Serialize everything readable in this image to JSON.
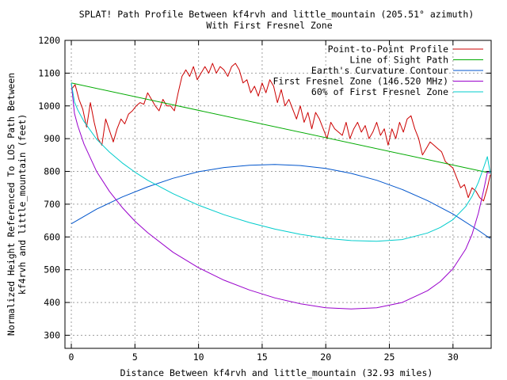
{
  "chart_data": {
    "type": "line",
    "title": "SPLAT! Path Profile Between kf4rvh and little_mountain (205.51° azimuth)",
    "subtitle": "With First Fresnel Zone",
    "xlabel": "Distance Between kf4rvh and little_mountain (32.93 miles)",
    "ylabel_line1": "Normalized Height Referenced To LOS Path Between",
    "ylabel_line2": "kf4rvh and little_mountain (feet)",
    "xlim": [
      -0.5,
      33
    ],
    "ylim": [
      260,
      1200
    ],
    "x_ticks": [
      0,
      5,
      10,
      15,
      20,
      25,
      30
    ],
    "y_ticks": [
      300,
      400,
      500,
      600,
      700,
      800,
      900,
      1000,
      1100,
      1200
    ],
    "grid": true,
    "legend_position": "top-right",
    "series": [
      {
        "name": "Point-to-Point Profile",
        "color": "#cc0000",
        "x": [
          0,
          0.3,
          0.6,
          0.9,
          1.2,
          1.5,
          1.8,
          2.1,
          2.4,
          2.7,
          3.0,
          3.3,
          3.6,
          3.9,
          4.2,
          4.5,
          4.8,
          5.1,
          5.4,
          5.7,
          6.0,
          6.3,
          6.6,
          6.9,
          7.2,
          7.5,
          7.8,
          8.1,
          8.4,
          8.7,
          9.0,
          9.3,
          9.6,
          9.9,
          10.2,
          10.5,
          10.8,
          11.1,
          11.4,
          11.7,
          12.0,
          12.3,
          12.6,
          12.9,
          13.2,
          13.5,
          13.8,
          14.1,
          14.4,
          14.7,
          15.0,
          15.3,
          15.6,
          15.9,
          16.2,
          16.5,
          16.8,
          17.1,
          17.4,
          17.7,
          18.0,
          18.3,
          18.6,
          18.9,
          19.2,
          19.5,
          19.8,
          20.1,
          20.4,
          20.7,
          21.0,
          21.3,
          21.6,
          21.9,
          22.2,
          22.5,
          22.8,
          23.1,
          23.4,
          23.7,
          24.0,
          24.3,
          24.6,
          24.9,
          25.2,
          25.5,
          25.8,
          26.1,
          26.4,
          26.7,
          27.0,
          27.3,
          27.6,
          27.9,
          28.2,
          28.5,
          28.8,
          29.1,
          29.4,
          29.7,
          30.0,
          30.3,
          30.6,
          30.9,
          31.2,
          31.5,
          31.8,
          32.1,
          32.4,
          32.7,
          32.93
        ],
        "y": [
          1050,
          1065,
          1020,
          990,
          935,
          1010,
          950,
          900,
          880,
          960,
          925,
          890,
          930,
          960,
          945,
          975,
          985,
          1000,
          1010,
          1005,
          1040,
          1020,
          1000,
          985,
          1020,
          1000,
          1000,
          985,
          1040,
          1090,
          1110,
          1090,
          1120,
          1080,
          1100,
          1120,
          1100,
          1130,
          1100,
          1120,
          1110,
          1090,
          1120,
          1130,
          1110,
          1070,
          1080,
          1040,
          1060,
          1030,
          1070,
          1040,
          1080,
          1060,
          1010,
          1050,
          1000,
          1020,
          990,
          960,
          1000,
          950,
          980,
          930,
          980,
          960,
          930,
          900,
          950,
          930,
          920,
          910,
          950,
          900,
          930,
          950,
          920,
          940,
          900,
          920,
          950,
          910,
          930,
          880,
          930,
          900,
          950,
          920,
          960,
          970,
          930,
          900,
          850,
          870,
          890,
          880,
          870,
          860,
          830,
          820,
          810,
          780,
          750,
          760,
          720,
          750,
          740,
          720,
          710,
          750,
          790
        ]
      },
      {
        "name": "Line of Sight Path",
        "color": "#00aa00",
        "x": [
          0,
          32.93
        ],
        "y": [
          1070,
          795
        ]
      },
      {
        "name": "Earth's Curvature Contour",
        "color": "#0055cc",
        "x": [
          0,
          2,
          4,
          6,
          8,
          10,
          12,
          14,
          16,
          18,
          20,
          22,
          24,
          26,
          28,
          30,
          32,
          32.93
        ],
        "y": [
          640,
          685,
          722,
          753,
          779,
          799,
          812,
          819,
          821,
          818,
          809,
          794,
          773,
          745,
          711,
          670,
          620,
          595
        ]
      },
      {
        "name": "First Fresnel Zone (146.520 MHz)",
        "color": "#9900cc",
        "x": [
          0,
          0.25,
          0.5,
          1,
          2,
          3,
          4,
          5,
          6,
          8,
          10,
          12,
          14,
          16,
          18,
          20,
          22,
          24,
          26,
          28,
          29,
          30,
          31,
          31.5,
          32,
          32.4,
          32.7,
          32.93
        ],
        "y": [
          1070,
          977,
          940,
          883,
          799,
          739,
          690,
          648,
          613,
          553,
          506,
          468,
          438,
          414,
          396,
          384,
          380,
          384,
          400,
          436,
          464,
          503,
          563,
          608,
          673,
          741,
          797,
          795
        ]
      },
      {
        "name": "60% of First Fresnel Zone",
        "color": "#00cccc",
        "x": [
          0,
          0.25,
          0.5,
          1,
          2,
          3,
          4,
          5,
          6,
          8,
          10,
          12,
          14,
          16,
          18,
          20,
          22,
          24,
          26,
          28,
          29,
          30,
          31,
          31.5,
          32,
          32.4,
          32.7,
          32.93
        ],
        "y": [
          1070,
          1012,
          988,
          952,
          898,
          859,
          826,
          798,
          773,
          732,
          697,
          668,
          644,
          624,
          608,
          596,
          589,
          587,
          592,
          612,
          629,
          653,
          693,
          724,
          767,
          811,
          845,
          795
        ]
      }
    ]
  }
}
